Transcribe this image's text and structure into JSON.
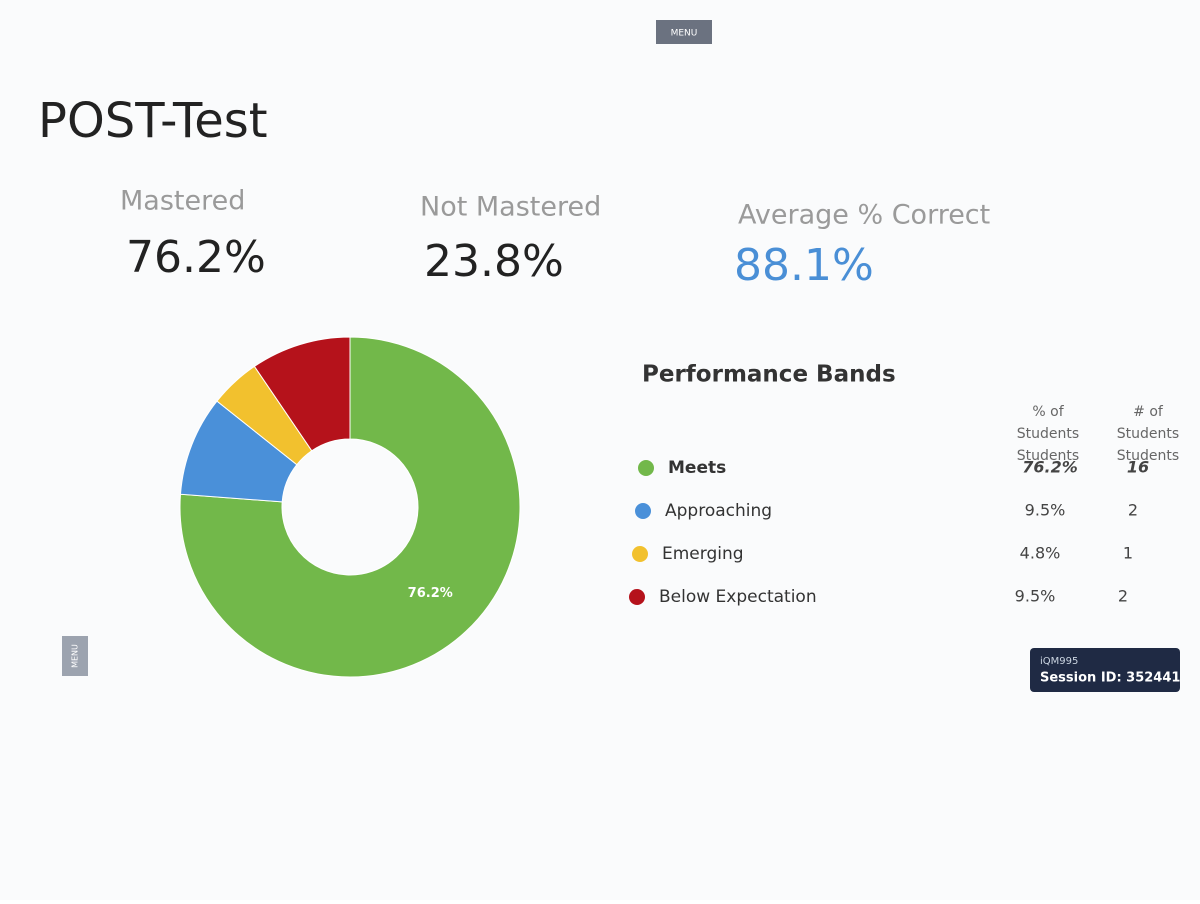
{
  "header": {
    "menu": "MENU",
    "title": "POST-Test",
    "side_menu": "MENU"
  },
  "stats": [
    {
      "label": "Mastered",
      "value": "76.2%"
    },
    {
      "label": "Not Mastered",
      "value": "23.8%"
    },
    {
      "label": "Average % Correct",
      "value": "88.1%"
    }
  ],
  "chart_data": {
    "type": "pie",
    "donut": true,
    "title": "Performance Bands",
    "categories": [
      "Meets",
      "Approaching",
      "Emerging",
      "Below Expectation"
    ],
    "values": [
      76.2,
      9.5,
      4.8,
      9.5
    ],
    "value_labels": [
      "76.2%",
      "9.5%",
      "4.8%",
      "9.5%"
    ],
    "colors": [
      "#72b84a",
      "#4a90d9",
      "#f2c12e",
      "#b5121b"
    ],
    "counts": [
      16,
      2,
      1,
      2
    ],
    "columns": [
      "% of Students",
      "# of Students"
    ]
  },
  "session": {
    "code": "iQM995",
    "id": "Session ID: 352441"
  }
}
